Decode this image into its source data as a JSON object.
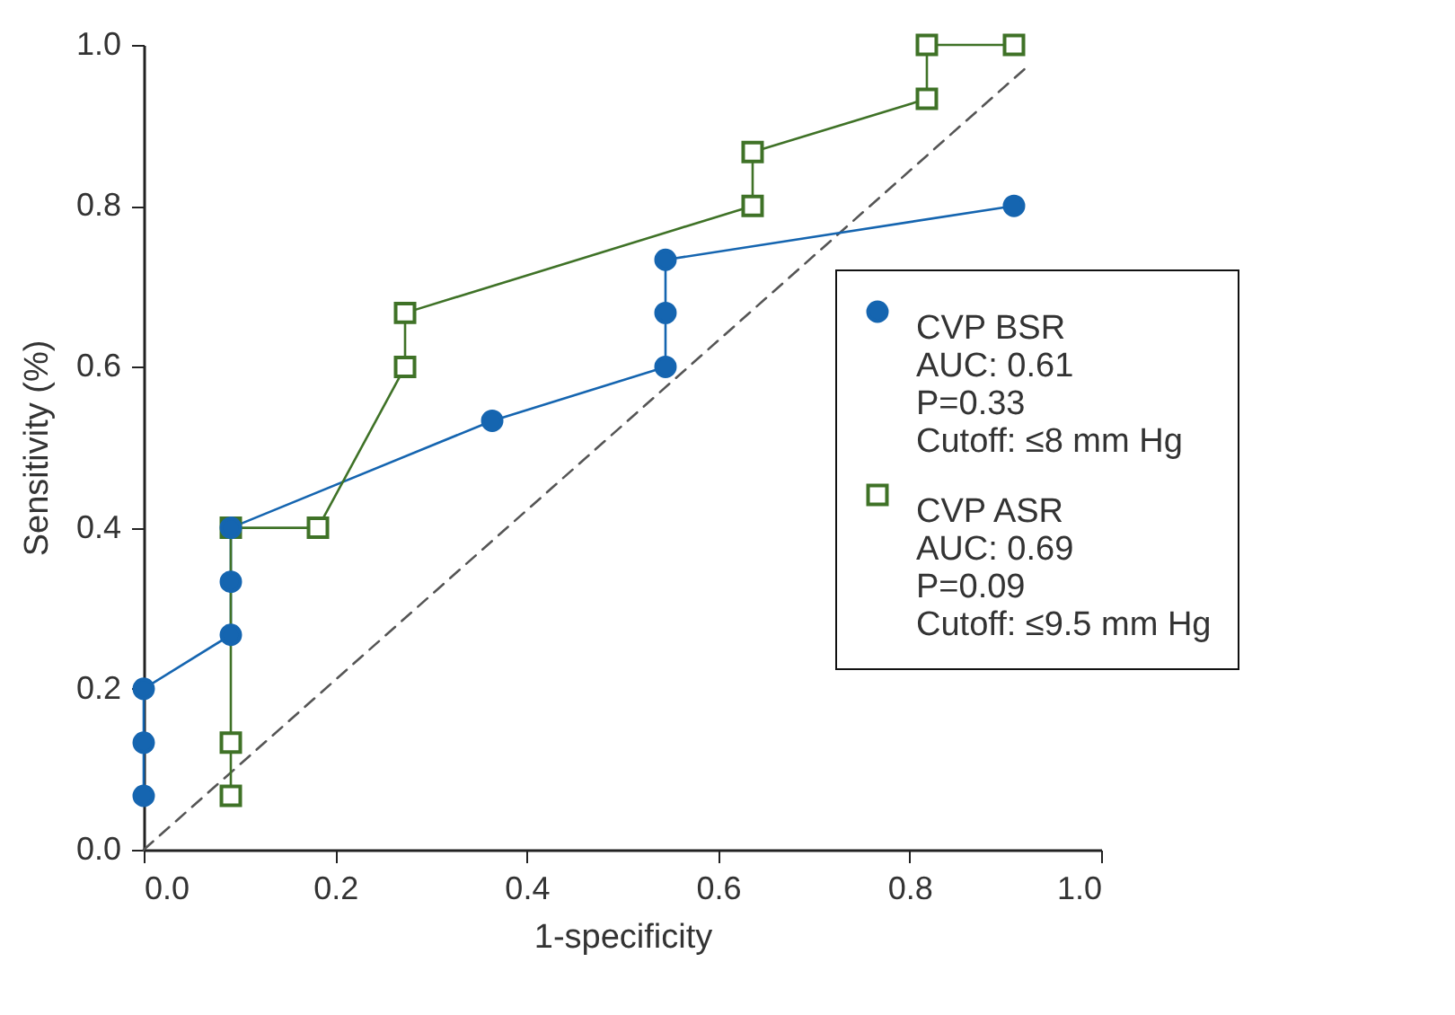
{
  "chart_data": {
    "type": "line",
    "xlabel": "1-specificity",
    "ylabel": "Sensitivity (%)",
    "xlim": [
      0,
      1
    ],
    "ylim": [
      0,
      1
    ],
    "xticks": [
      {
        "value": 0,
        "label": "0.0"
      },
      {
        "value": 0.2,
        "label": "0.2"
      },
      {
        "value": 0.4,
        "label": "0.4"
      },
      {
        "value": 0.6,
        "label": "0.6"
      },
      {
        "value": 0.8,
        "label": "0.8"
      },
      {
        "value": 1,
        "label": "1.0"
      }
    ],
    "yticks": [
      {
        "value": 0,
        "label": "0.0"
      },
      {
        "value": 0.2,
        "label": "0.2"
      },
      {
        "value": 0.4,
        "label": "0.4"
      },
      {
        "value": 0.6,
        "label": "0.6"
      },
      {
        "value": 0.8,
        "label": "0.8"
      },
      {
        "value": 1,
        "label": "1.0"
      }
    ],
    "grid": false,
    "legend": "right",
    "line_style": "solid",
    "series": [
      {
        "type": "line",
        "line_style": "dashed",
        "marker": "none",
        "color": "#555555",
        "x": [
          0,
          0.92
        ],
        "values": [
          0,
          0.97
        ]
      },
      {
        "name": "CVP BSR",
        "marker": "circle",
        "color": "#1565b0",
        "x": [
          0,
          0,
          0,
          0.091,
          0.091,
          0.091,
          0.364,
          0.545,
          0.545,
          0.545,
          0.909
        ],
        "values": [
          0.067,
          0.133,
          0.2,
          0.267,
          0.333,
          0.4,
          0.533,
          0.6,
          0.667,
          0.733,
          0.8
        ]
      },
      {
        "name": "CVP ASR",
        "marker": "square",
        "color": "#3f7227",
        "x": [
          0.091,
          0.091,
          0.091,
          0.182,
          0.273,
          0.273,
          0.636,
          0.636,
          0.818,
          0.818,
          0.909
        ],
        "values": [
          0.067,
          0.133,
          0.4,
          0.4,
          0.6,
          0.667,
          0.8,
          0.867,
          0.933,
          1.0,
          1.0
        ]
      }
    ],
    "annotations": [
      "AUC: 0.61",
      "P=0.33",
      "Cutoff: ≤8 mm Hg",
      "AUC: 0.69",
      "P=0.09",
      "Cutoff: ≤9.5 mm Hg"
    ]
  }
}
